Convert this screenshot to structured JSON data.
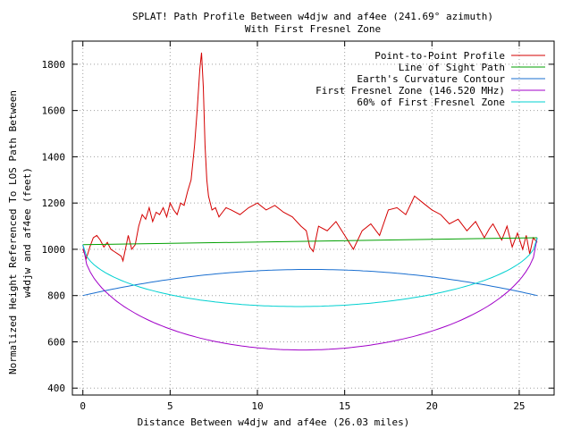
{
  "chart_data": {
    "type": "line",
    "title_line1": "SPLAT! Path Profile Between w4djw and af4ee (241.69° azimuth)",
    "title_line2": "With First Fresnel Zone",
    "xlabel": "Distance Between w4djw and af4ee (26.03 miles)",
    "ylabel_line1": "Normalized Height Referenced To LOS Path Between",
    "ylabel_line2": "w4djw and af4ee (feet)",
    "xlim": [
      -0.6,
      27
    ],
    "ylim": [
      370,
      1900
    ],
    "xticks": [
      0,
      5,
      10,
      15,
      20,
      25
    ],
    "yticks": [
      400,
      600,
      800,
      1000,
      1200,
      1400,
      1600,
      1800
    ],
    "grid": true,
    "legend_position": "top-right",
    "colors": {
      "profile": "#d40000",
      "los": "#00a000",
      "curvature": "#1a6fd0",
      "fresnel": "#a000c8",
      "fresnel60": "#00d0d0"
    },
    "series": [
      {
        "name": "Point-to-Point Profile",
        "x": [
          0,
          0.2,
          0.4,
          0.6,
          0.8,
          1.0,
          1.2,
          1.4,
          1.6,
          1.8,
          2.0,
          2.2,
          2.3,
          2.6,
          2.8,
          3.0,
          3.2,
          3.4,
          3.6,
          3.8,
          4.0,
          4.2,
          4.4,
          4.6,
          4.8,
          5.0,
          5.2,
          5.4,
          5.6,
          5.8,
          6.0,
          6.2,
          6.4,
          6.55,
          6.7,
          6.8,
          6.9,
          7.0,
          7.1,
          7.2,
          7.4,
          7.6,
          7.8,
          8.0,
          8.2,
          8.5,
          9.0,
          9.5,
          10.0,
          10.5,
          11.0,
          11.5,
          12.0,
          12.5,
          12.8,
          13.0,
          13.2,
          13.5,
          14.0,
          14.5,
          15.0,
          15.5,
          16.0,
          16.5,
          17.0,
          17.5,
          18.0,
          18.5,
          19.0,
          19.5,
          20.0,
          20.5,
          21.0,
          21.5,
          22.0,
          22.5,
          23.0,
          23.3,
          23.5,
          24.0,
          24.3,
          24.6,
          24.9,
          25.2,
          25.4,
          25.6,
          25.8,
          26.03
        ],
        "y": [
          1000,
          960,
          1010,
          1050,
          1060,
          1040,
          1010,
          1030,
          1000,
          990,
          980,
          970,
          950,
          1060,
          1000,
          1020,
          1100,
          1150,
          1130,
          1180,
          1120,
          1160,
          1150,
          1180,
          1140,
          1200,
          1170,
          1150,
          1200,
          1190,
          1250,
          1300,
          1450,
          1600,
          1780,
          1850,
          1700,
          1450,
          1300,
          1230,
          1170,
          1180,
          1140,
          1160,
          1180,
          1170,
          1150,
          1180,
          1200,
          1170,
          1190,
          1160,
          1140,
          1100,
          1080,
          1010,
          990,
          1100,
          1080,
          1120,
          1060,
          1000,
          1080,
          1110,
          1060,
          1170,
          1180,
          1150,
          1230,
          1200,
          1170,
          1150,
          1110,
          1130,
          1080,
          1120,
          1050,
          1090,
          1110,
          1040,
          1100,
          1010,
          1070,
          1000,
          1060,
          980,
          1050,
          1030
        ]
      },
      {
        "name": "Line of Sight Path",
        "x": [
          0,
          26.03
        ],
        "y": [
          1020,
          1050
        ]
      },
      {
        "name": "Earth's Curvature Contour",
        "function": "parabola",
        "x_range": [
          0,
          26.03
        ],
        "end_value": 800,
        "peak_value": 913
      },
      {
        "name": "First Fresnel Zone (146.520 MHz)",
        "function": "ellipse_lower",
        "x_range": [
          0,
          26.03
        ],
        "los_start": 1020,
        "los_end": 1050,
        "max_depth": 470
      },
      {
        "name": "60% of First Fresnel Zone",
        "function": "ellipse_lower",
        "x_range": [
          0,
          26.03
        ],
        "los_start": 1020,
        "los_end": 1050,
        "max_depth": 282
      }
    ]
  }
}
